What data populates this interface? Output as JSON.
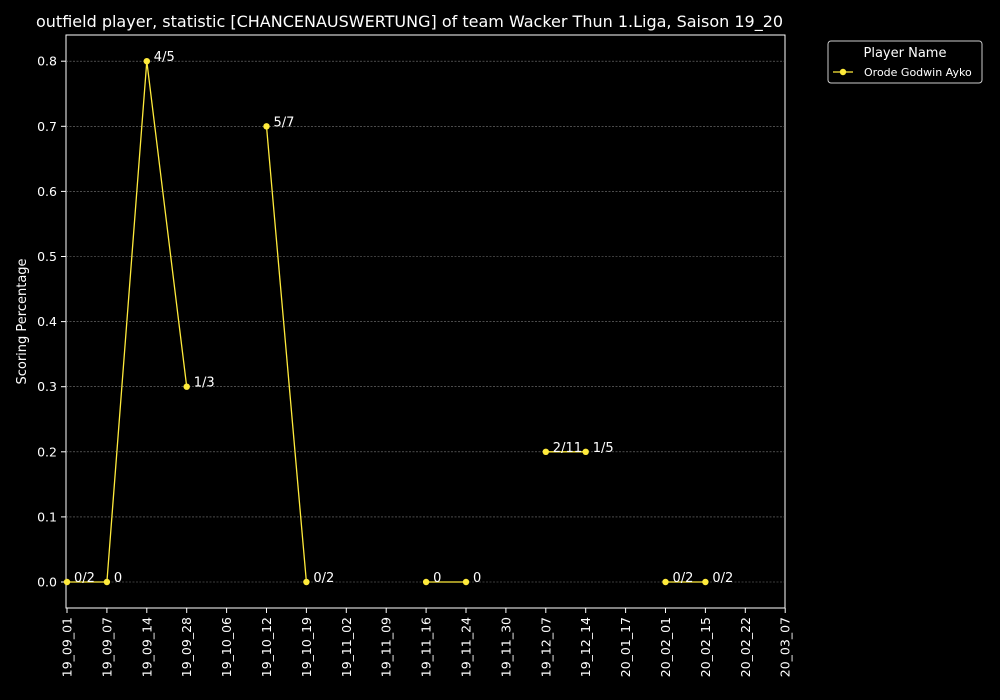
{
  "chart_data": {
    "type": "line",
    "title": "outfield player, statistic [CHANCENAUSWERTUNG] of team Wacker Thun 1.Liga, Saison 19_20",
    "xlabel": "",
    "ylabel": "Scoring Percentage",
    "categories": [
      "19_09_01",
      "19_09_07",
      "19_09_14",
      "19_09_28",
      "19_10_06",
      "19_10_12",
      "19_10_19",
      "19_11_02",
      "19_11_09",
      "19_11_16",
      "19_11_24",
      "19_11_30",
      "19_12_07",
      "19_12_14",
      "20_01_17",
      "20_02_01",
      "20_02_15",
      "20_02_22",
      "20_03_07"
    ],
    "ylim": [
      -0.04,
      0.84
    ],
    "yticks": [
      "0.0",
      "0.1",
      "0.2",
      "0.3",
      "0.4",
      "0.5",
      "0.6",
      "0.7",
      "0.8"
    ],
    "grid": true,
    "legend": {
      "title": "Player Name",
      "placement": "outside-top-right"
    },
    "series": [
      {
        "name": "Orode Godwin Ayko",
        "color": "#ffeb3b",
        "segments": [
          [
            {
              "x": "19_09_01",
              "y": 0.0,
              "label": "0/2"
            },
            {
              "x": "19_09_07",
              "y": 0.0,
              "label": "0"
            },
            {
              "x": "19_09_14",
              "y": 0.8,
              "label": "4/5"
            },
            {
              "x": "19_09_28",
              "y": 0.3,
              "label": "1/3"
            }
          ],
          [
            {
              "x": "19_10_12",
              "y": 0.7,
              "label": "5/7"
            },
            {
              "x": "19_10_19",
              "y": 0.0,
              "label": "0/2"
            }
          ],
          [
            {
              "x": "19_11_16",
              "y": 0.0,
              "label": "0"
            },
            {
              "x": "19_11_24",
              "y": 0.0,
              "label": "0"
            }
          ],
          [
            {
              "x": "19_12_07",
              "y": 0.2,
              "label": "2/11"
            },
            {
              "x": "19_12_14",
              "y": 0.2,
              "label": "1/5"
            }
          ],
          [
            {
              "x": "20_02_01",
              "y": 0.0,
              "label": "0/2"
            },
            {
              "x": "20_02_15",
              "y": 0.0,
              "label": "0/2"
            }
          ]
        ]
      }
    ]
  }
}
